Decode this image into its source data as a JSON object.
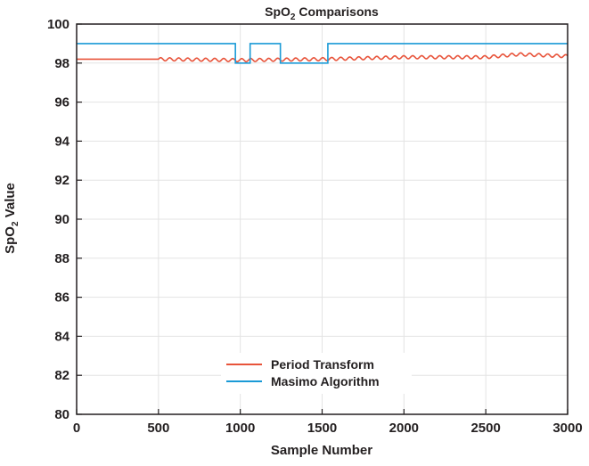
{
  "chart_data": {
    "type": "line",
    "title": {
      "main": "SpO",
      "sub": "2",
      "rest": " Comparisons"
    },
    "xlabel": "Sample Number",
    "ylabel": {
      "main": "SpO",
      "sub": "2",
      "rest": " Value"
    },
    "xlim": [
      0,
      3000
    ],
    "ylim": [
      80,
      100
    ],
    "x_ticks": [
      0,
      500,
      1000,
      1500,
      2000,
      2500,
      3000
    ],
    "y_ticks": [
      80,
      82,
      84,
      86,
      88,
      90,
      92,
      94,
      96,
      98,
      100
    ],
    "grid": true,
    "legend_position": "bottom-center",
    "series": [
      {
        "name": "Period Transform",
        "color": "#e8543b",
        "style": "oscillating",
        "points": [
          [
            0,
            98.2
          ],
          [
            500,
            98.2
          ],
          [
            1000,
            98.15
          ],
          [
            1500,
            98.2
          ],
          [
            2000,
            98.3
          ],
          [
            2500,
            98.3
          ],
          [
            2700,
            98.45
          ],
          [
            3000,
            98.35
          ]
        ],
        "oscillation_start": 500,
        "oscillation_period": 55,
        "oscillation_amplitude": 0.08
      },
      {
        "name": "Masimo Algorithm",
        "color": "#1a9ad6",
        "style": "step",
        "points": [
          [
            0,
            99
          ],
          [
            970,
            99
          ],
          [
            970,
            98
          ],
          [
            1060,
            98
          ],
          [
            1060,
            99
          ],
          [
            1245,
            99
          ],
          [
            1245,
            98
          ],
          [
            1535,
            98
          ],
          [
            1535,
            99
          ],
          [
            3000,
            99
          ]
        ]
      }
    ]
  }
}
